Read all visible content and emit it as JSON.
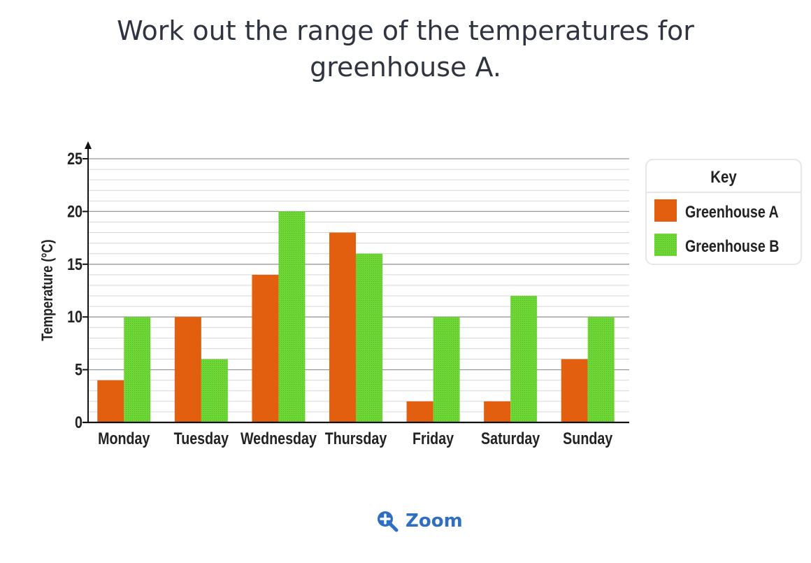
{
  "question": {
    "line1": "Work out the range of the temperatures for",
    "line2": "greenhouse A."
  },
  "zoom": {
    "label": "Zoom",
    "icon": "zoom-in-icon"
  },
  "chart_data": {
    "type": "bar",
    "ylabel": "Temperature (°C)",
    "xlabel": "",
    "ylim": [
      0,
      25
    ],
    "yticks": [
      0,
      5,
      10,
      15,
      20,
      25
    ],
    "minor_gridlines_every": 1,
    "categories": [
      "Monday",
      "Tuesday",
      "Wednesday",
      "Thursday",
      "Friday",
      "Saturday",
      "Sunday"
    ],
    "series": [
      {
        "name": "Greenhouse A",
        "color": "#e15f0e",
        "values": [
          4,
          10,
          14,
          18,
          2,
          2,
          6
        ]
      },
      {
        "name": "Greenhouse B",
        "color": "#67d330",
        "values": [
          10,
          6,
          20,
          16,
          10,
          12,
          10
        ]
      }
    ],
    "legend": {
      "title": "Key",
      "placement": "right"
    },
    "grid": true
  }
}
